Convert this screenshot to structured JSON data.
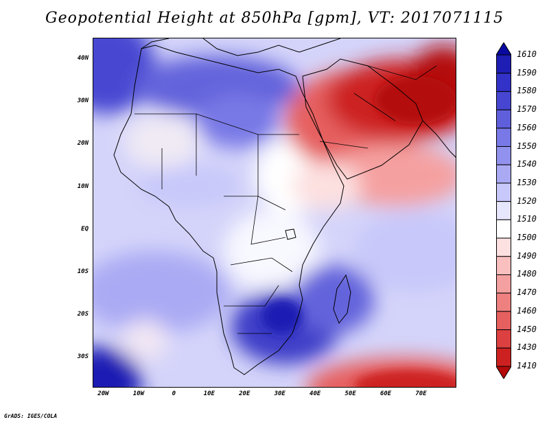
{
  "title": "Geopotential Height at 850hPa [gpm], VT: 2017071115",
  "credit": "GrADS: IGES/COLA",
  "map": {
    "lat_labels": [
      "40N",
      "30N",
      "20N",
      "10N",
      "EQ",
      "10S",
      "20S",
      "30S"
    ],
    "lat_values": [
      40,
      30,
      20,
      10,
      0,
      -10,
      -20,
      -30
    ],
    "lon_labels": [
      "20W",
      "10W",
      "0",
      "10E",
      "20E",
      "30E",
      "40E",
      "50E",
      "60E",
      "70E"
    ],
    "lon_values": [
      -20,
      -10,
      0,
      10,
      20,
      30,
      40,
      50,
      60,
      70
    ],
    "lat_range": [
      -37,
      45
    ],
    "lon_range": [
      -23,
      80
    ]
  },
  "colorbar": {
    "levels": [
      "1610",
      "1590",
      "1580",
      "1570",
      "1560",
      "1550",
      "1540",
      "1530",
      "1520",
      "1510",
      "1500",
      "1490",
      "1480",
      "1470",
      "1460",
      "1450",
      "1430",
      "1410"
    ],
    "colors": [
      "#0a0aa0",
      "#1e1eb4",
      "#3232c8",
      "#4646d2",
      "#5f5fdc",
      "#7878e6",
      "#9191ee",
      "#aaaaf4",
      "#c8c8fa",
      "#e6e6fd",
      "#ffffff",
      "#fde0e0",
      "#fac0c0",
      "#f5a0a0",
      "#ee8080",
      "#e66060",
      "#dc4040",
      "#cd2020",
      "#b40a0a"
    ]
  }
}
